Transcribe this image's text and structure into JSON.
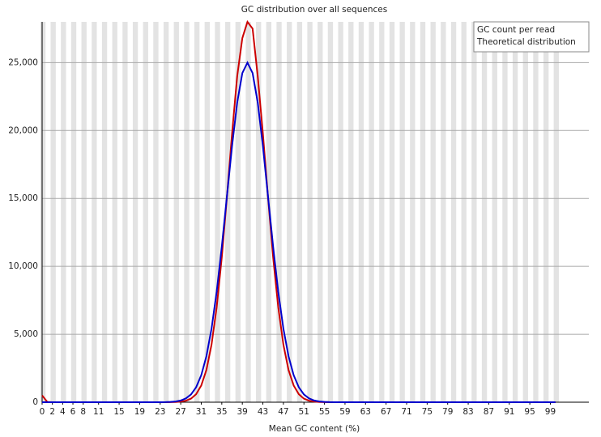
{
  "chart_data": {
    "type": "line",
    "title": "GC distribution over all sequences",
    "xlabel": "Mean GC content (%)",
    "x": [
      0,
      1,
      2,
      3,
      4,
      5,
      6,
      7,
      8,
      9,
      10,
      11,
      12,
      13,
      14,
      15,
      16,
      17,
      18,
      19,
      20,
      21,
      22,
      23,
      24,
      25,
      26,
      27,
      28,
      29,
      30,
      31,
      32,
      33,
      34,
      35,
      36,
      37,
      38,
      39,
      40,
      41,
      42,
      43,
      44,
      45,
      46,
      47,
      48,
      49,
      50,
      51,
      52,
      53,
      54,
      55,
      56,
      57,
      58,
      59,
      60,
      61,
      62,
      63,
      64,
      65,
      66,
      67,
      68,
      69,
      70,
      71,
      72,
      73,
      74,
      75,
      76,
      77,
      78,
      79,
      80,
      81,
      82,
      83,
      84,
      85,
      86,
      87,
      88,
      89,
      90,
      91,
      92,
      93,
      94,
      95,
      96,
      97,
      98,
      99,
      100
    ],
    "series": [
      {
        "name": "GC count per read",
        "color": "#cc0000",
        "values": [
          500,
          20,
          0,
          0,
          0,
          0,
          0,
          0,
          0,
          0,
          0,
          0,
          0,
          0,
          0,
          0,
          0,
          0,
          0,
          0,
          0,
          0,
          0,
          0,
          2,
          5,
          15,
          41,
          108,
          263,
          590,
          1230,
          2370,
          4230,
          6980,
          10670,
          15100,
          19790,
          24000,
          26800,
          28000,
          27500,
          24000,
          19790,
          15100,
          10670,
          6980,
          4230,
          2370,
          1230,
          590,
          263,
          108,
          41,
          15,
          5,
          2,
          0,
          0,
          0,
          0,
          0,
          0,
          0,
          0,
          0,
          0,
          0,
          0,
          0,
          0,
          0,
          0,
          0,
          0,
          0,
          0,
          0,
          0,
          0,
          0,
          0,
          0,
          0,
          0,
          0,
          0,
          0,
          0,
          0,
          0,
          0,
          0,
          0,
          0,
          0,
          0,
          0,
          0,
          0,
          0
        ]
      },
      {
        "name": "Theoretical distribution",
        "color": "#0000cc",
        "values": [
          0,
          0,
          0,
          0,
          0,
          0,
          0,
          0,
          0,
          0,
          0,
          0,
          0,
          0,
          0,
          0,
          0,
          0,
          0,
          0,
          0,
          0,
          1,
          3,
          8,
          22,
          55,
          127,
          278,
          570,
          1098,
          1990,
          3383,
          5408,
          8117,
          11446,
          15163,
          18870,
          22063,
          24230,
          25000,
          24230,
          22063,
          18870,
          15163,
          11446,
          8117,
          5408,
          3383,
          1990,
          1098,
          570,
          278,
          127,
          55,
          22,
          8,
          3,
          1,
          0,
          0,
          0,
          0,
          0,
          0,
          0,
          0,
          0,
          0,
          0,
          0,
          0,
          0,
          0,
          0,
          0,
          0,
          0,
          0,
          0,
          0,
          0,
          0,
          0,
          0,
          0,
          0,
          0,
          0,
          0,
          0,
          0,
          0,
          0,
          0,
          0,
          0,
          0,
          0,
          0,
          0
        ]
      }
    ],
    "xlim": [
      0,
      106.5
    ],
    "xticks": [
      0,
      2,
      4,
      6,
      8,
      11,
      15,
      19,
      23,
      27,
      31,
      35,
      39,
      43,
      47,
      51,
      55,
      59,
      63,
      67,
      71,
      75,
      79,
      83,
      87,
      91,
      95,
      99
    ],
    "ylim": [
      0,
      28000
    ],
    "yticks": [
      0,
      {
        "value": 5000,
        "label": "5,000"
      },
      {
        "value": 10000,
        "label": "10,000"
      },
      {
        "value": 15000,
        "label": "15,000"
      },
      {
        "value": 20000,
        "label": "20,000"
      },
      {
        "value": 25000,
        "label": "25,000"
      }
    ],
    "grid": true,
    "legend": "top-right"
  }
}
